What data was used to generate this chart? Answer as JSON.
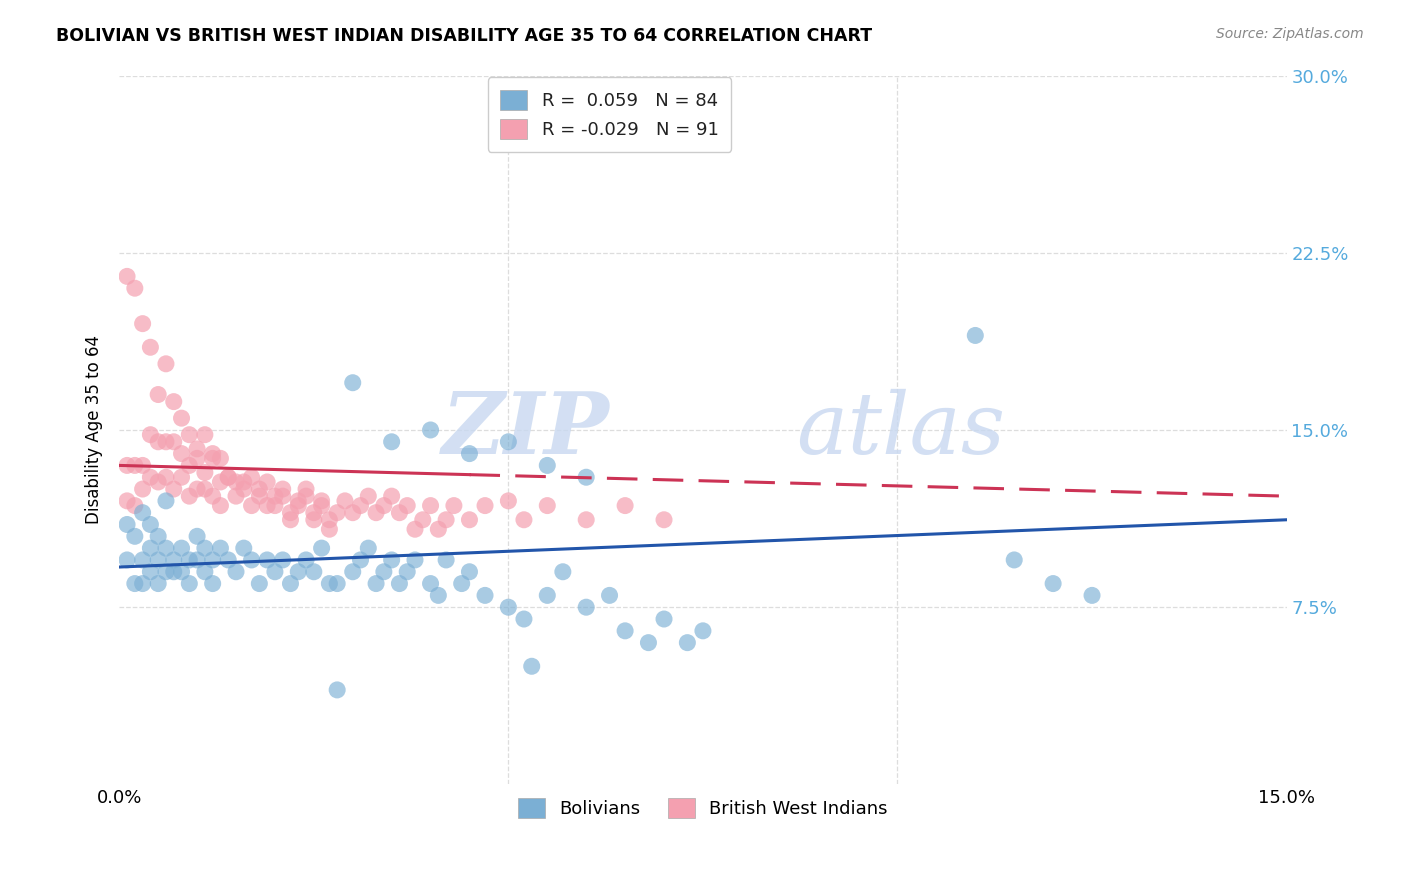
{
  "title": "BOLIVIAN VS BRITISH WEST INDIAN DISABILITY AGE 35 TO 64 CORRELATION CHART",
  "source": "Source: ZipAtlas.com",
  "ylabel": "Disability Age 35 to 64",
  "xlim": [
    0.0,
    0.15
  ],
  "ylim": [
    0.0,
    0.3
  ],
  "yticks": [
    0.075,
    0.15,
    0.225,
    0.3
  ],
  "ytick_labels": [
    "7.5%",
    "15.0%",
    "22.5%",
    "30.0%"
  ],
  "xtick_labels": [
    "0.0%",
    "15.0%"
  ],
  "legend1_label": "R =  0.059   N = 84",
  "legend2_label": "R = -0.029   N = 91",
  "legend_bolivians": "Bolivians",
  "legend_bwi": "British West Indians",
  "blue_scatter_color": "#7BAFD4",
  "pink_scatter_color": "#F4A0B0",
  "blue_line_color": "#2255AA",
  "pink_line_color": "#CC3355",
  "watermark_text": "ZIPatlas",
  "watermark_color": "#DDEEFF",
  "grid_color": "#DDDDDD",
  "tick_color": "#55AADD",
  "background": "#FFFFFF",
  "bolivians_x": [
    0.001,
    0.001,
    0.002,
    0.002,
    0.003,
    0.003,
    0.003,
    0.004,
    0.004,
    0.004,
    0.005,
    0.005,
    0.005,
    0.006,
    0.006,
    0.006,
    0.007,
    0.007,
    0.008,
    0.008,
    0.009,
    0.009,
    0.01,
    0.01,
    0.011,
    0.011,
    0.012,
    0.012,
    0.013,
    0.014,
    0.015,
    0.016,
    0.017,
    0.018,
    0.019,
    0.02,
    0.021,
    0.022,
    0.023,
    0.024,
    0.025,
    0.026,
    0.027,
    0.028,
    0.03,
    0.031,
    0.032,
    0.033,
    0.034,
    0.035,
    0.036,
    0.037,
    0.038,
    0.04,
    0.041,
    0.042,
    0.044,
    0.045,
    0.047,
    0.05,
    0.052,
    0.055,
    0.057,
    0.06,
    0.063,
    0.065,
    0.068,
    0.07,
    0.073,
    0.075,
    0.03,
    0.035,
    0.04,
    0.045,
    0.05,
    0.055,
    0.06,
    0.11,
    0.115,
    0.12,
    0.125,
    0.05,
    0.053,
    0.028
  ],
  "bolivians_y": [
    0.095,
    0.11,
    0.085,
    0.105,
    0.095,
    0.115,
    0.085,
    0.1,
    0.09,
    0.11,
    0.095,
    0.105,
    0.085,
    0.09,
    0.1,
    0.12,
    0.09,
    0.095,
    0.1,
    0.09,
    0.095,
    0.085,
    0.095,
    0.105,
    0.09,
    0.1,
    0.095,
    0.085,
    0.1,
    0.095,
    0.09,
    0.1,
    0.095,
    0.085,
    0.095,
    0.09,
    0.095,
    0.085,
    0.09,
    0.095,
    0.09,
    0.1,
    0.085,
    0.085,
    0.09,
    0.095,
    0.1,
    0.085,
    0.09,
    0.095,
    0.085,
    0.09,
    0.095,
    0.085,
    0.08,
    0.095,
    0.085,
    0.09,
    0.08,
    0.075,
    0.07,
    0.08,
    0.09,
    0.075,
    0.08,
    0.065,
    0.06,
    0.07,
    0.06,
    0.065,
    0.17,
    0.145,
    0.15,
    0.14,
    0.145,
    0.135,
    0.13,
    0.19,
    0.095,
    0.085,
    0.08,
    0.28,
    0.05,
    0.04
  ],
  "bwi_x": [
    0.001,
    0.001,
    0.002,
    0.002,
    0.003,
    0.003,
    0.004,
    0.004,
    0.005,
    0.005,
    0.006,
    0.006,
    0.007,
    0.007,
    0.008,
    0.008,
    0.009,
    0.009,
    0.01,
    0.01,
    0.011,
    0.011,
    0.012,
    0.012,
    0.013,
    0.013,
    0.014,
    0.015,
    0.016,
    0.017,
    0.018,
    0.019,
    0.02,
    0.021,
    0.022,
    0.023,
    0.024,
    0.025,
    0.026,
    0.027,
    0.028,
    0.029,
    0.03,
    0.031,
    0.032,
    0.033,
    0.034,
    0.035,
    0.036,
    0.037,
    0.038,
    0.039,
    0.04,
    0.041,
    0.042,
    0.043,
    0.045,
    0.047,
    0.05,
    0.052,
    0.055,
    0.06,
    0.065,
    0.07,
    0.001,
    0.002,
    0.003,
    0.004,
    0.005,
    0.006,
    0.007,
    0.008,
    0.009,
    0.01,
    0.011,
    0.012,
    0.013,
    0.014,
    0.015,
    0.016,
    0.017,
    0.018,
    0.019,
    0.02,
    0.021,
    0.022,
    0.023,
    0.024,
    0.025,
    0.026,
    0.027
  ],
  "bwi_y": [
    0.135,
    0.12,
    0.135,
    0.118,
    0.135,
    0.125,
    0.148,
    0.13,
    0.145,
    0.128,
    0.145,
    0.13,
    0.145,
    0.125,
    0.14,
    0.13,
    0.135,
    0.122,
    0.138,
    0.125,
    0.132,
    0.125,
    0.138,
    0.122,
    0.128,
    0.118,
    0.13,
    0.122,
    0.128,
    0.118,
    0.125,
    0.118,
    0.122,
    0.125,
    0.115,
    0.12,
    0.125,
    0.115,
    0.12,
    0.112,
    0.115,
    0.12,
    0.115,
    0.118,
    0.122,
    0.115,
    0.118,
    0.122,
    0.115,
    0.118,
    0.108,
    0.112,
    0.118,
    0.108,
    0.112,
    0.118,
    0.112,
    0.118,
    0.12,
    0.112,
    0.118,
    0.112,
    0.118,
    0.112,
    0.215,
    0.21,
    0.195,
    0.185,
    0.165,
    0.178,
    0.162,
    0.155,
    0.148,
    0.142,
    0.148,
    0.14,
    0.138,
    0.13,
    0.128,
    0.125,
    0.13,
    0.122,
    0.128,
    0.118,
    0.122,
    0.112,
    0.118,
    0.122,
    0.112,
    0.118,
    0.108
  ]
}
